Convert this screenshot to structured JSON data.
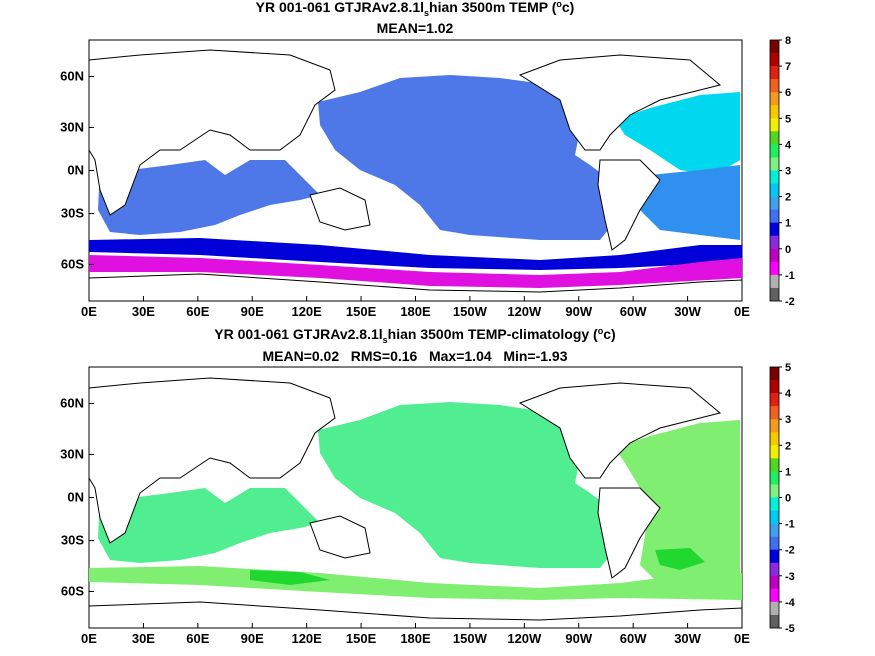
{
  "panels": [
    {
      "title_main": "YR 001-061 GTJRAv2.8.1l",
      "title_sub": "s",
      "title_rest": "hian 3500m TEMP (",
      "title_sup": "o",
      "title_end": "c)",
      "stats": "MEAN=1.02",
      "xticks": [
        "0E",
        "30E",
        "60E",
        "90E",
        "120E",
        "150E",
        "180E",
        "150W",
        "120W",
        "90W",
        "60W",
        "30W",
        "0E"
      ],
      "yticks": [
        "60N",
        "30N",
        "0N",
        "30S",
        "60S"
      ],
      "colorbar": {
        "labels": [
          "8",
          "7",
          "6",
          "5",
          "4",
          "3",
          "2",
          "1",
          "0",
          "-1",
          "-2"
        ],
        "colors": [
          "#7a0000",
          "#b00000",
          "#e02010",
          "#f06020",
          "#f49a20",
          "#f5c800",
          "#f0f000",
          "#50d820",
          "#20f060",
          "#80f080",
          "#00f0d8",
          "#00c8f0",
          "#40a0f0",
          "#4070f0",
          "#0000e0",
          "#8a2be2",
          "#c000c0",
          "#ff00ff",
          "#b0b0b0",
          "#606060"
        ]
      }
    },
    {
      "title_main": "YR 001-061 GTJRAv2.8.1l",
      "title_sub": "s",
      "title_rest": "hian 3500m TEMP-climatology (",
      "title_sup": "o",
      "title_end": "c)",
      "stats": "MEAN=0.02   RMS=0.16   Max=1.04   Min=-1.93",
      "xticks": [
        "0E",
        "30E",
        "60E",
        "90E",
        "120E",
        "150E",
        "180E",
        "150W",
        "120W",
        "90W",
        "60W",
        "30W",
        "0E"
      ],
      "yticks": [
        "60N",
        "30N",
        "0N",
        "30S",
        "60S"
      ],
      "colorbar": {
        "labels": [
          "5",
          "4",
          "3",
          "2",
          "1",
          "0",
          "-1",
          "-2",
          "-3",
          "-4",
          "-5"
        ],
        "colors": [
          "#7a0000",
          "#b00000",
          "#e02010",
          "#f06020",
          "#f49a20",
          "#f5c800",
          "#f0f000",
          "#50d820",
          "#20f060",
          "#80f080",
          "#00f0d8",
          "#00c8f0",
          "#40a0f0",
          "#4070f0",
          "#0000e0",
          "#8a2be2",
          "#c000c0",
          "#ff00ff",
          "#b0b0b0",
          "#606060"
        ]
      }
    }
  ]
}
